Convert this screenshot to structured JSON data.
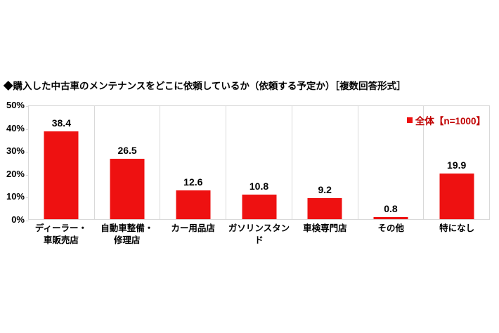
{
  "page": {
    "background": "#ffffff"
  },
  "title": "◆購入した中古車のメンテナンスをどこに依頼しているか（依頼する予定か）［複数回答形式］",
  "legend": {
    "label": "全体【n=1000】",
    "swatch_color": "#ee1111",
    "text_color": "#c00000"
  },
  "chart_data": {
    "type": "bar",
    "title": "購入した中古車のメンテナンスをどこに依頼しているか（依頼する予定か）［複数回答形式］",
    "categories": [
      [
        "ディーラー・",
        "車販売店"
      ],
      [
        "自動車整備・",
        "修理店"
      ],
      [
        "カー用品店"
      ],
      [
        "ガソリンスタンド"
      ],
      [
        "車検専門店"
      ],
      [
        "その他"
      ],
      [
        "特になし"
      ]
    ],
    "values": [
      38.4,
      26.5,
      12.6,
      10.8,
      9.2,
      0.8,
      19.9
    ],
    "series_name": "全体【n=1000】",
    "sample_size": 1000,
    "ylim": [
      0,
      50
    ],
    "ytick_labels": [
      "0%",
      "10%",
      "20%",
      "30%",
      "40%",
      "50%"
    ],
    "bar_color": "#ee1111",
    "grid": "vertical category separators, light gray",
    "gridline_color": "#d9d9d9",
    "legend_position": "top-right",
    "value_labels": "above bars, one decimal"
  }
}
